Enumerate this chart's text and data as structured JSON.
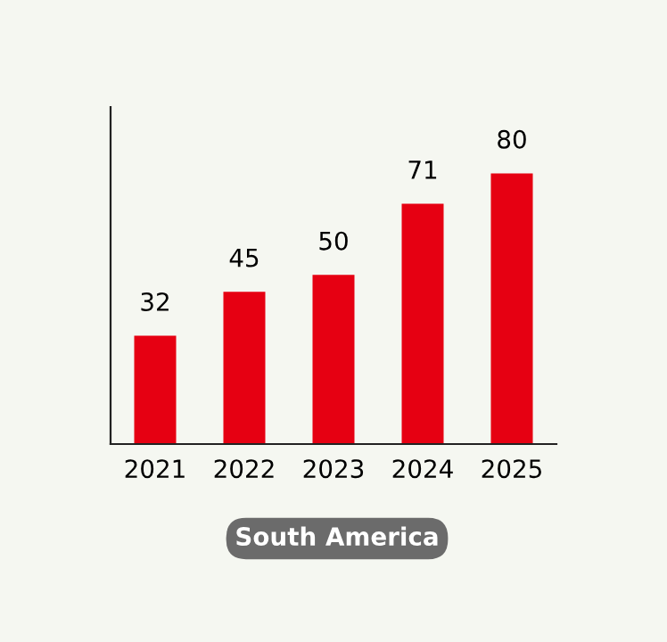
{
  "chart_data": {
    "type": "bar",
    "title": "South America",
    "categories": [
      "2021",
      "2022",
      "2023",
      "2024",
      "2025"
    ],
    "values": [
      32,
      45,
      50,
      71,
      80
    ],
    "color": "#e60012",
    "data_labels": true,
    "grid": false,
    "legend": false
  }
}
